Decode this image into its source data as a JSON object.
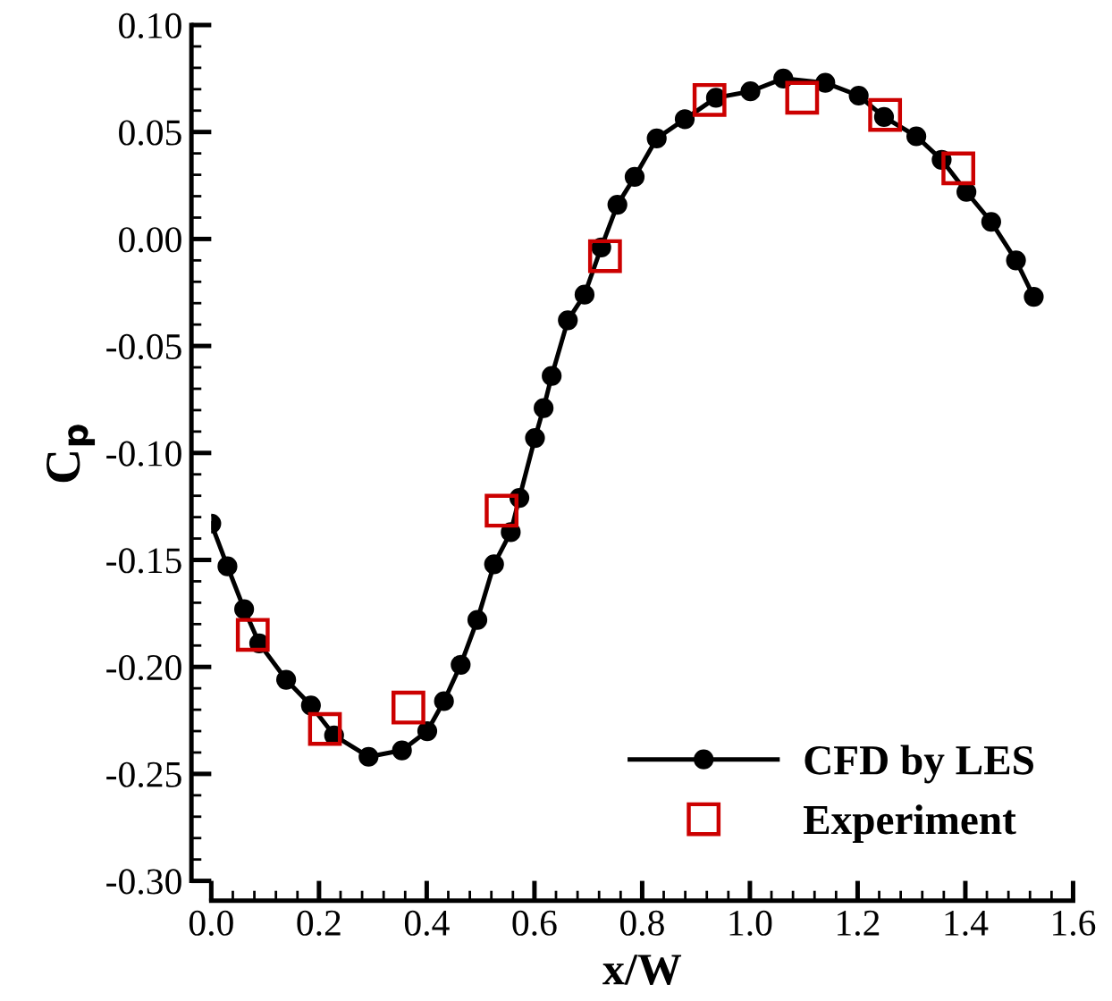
{
  "chart_data": {
    "type": "line",
    "xlabel": "x/W",
    "ylabel": "C$_{p}$",
    "xlim": [
      0,
      1.6
    ],
    "xticks": [
      {
        "value": 0,
        "label": "0.0"
      },
      0.2,
      0.4,
      0.6,
      0.8,
      {
        "value": 1,
        "label": "1.0"
      },
      1.2,
      1.4,
      1.6
    ],
    "ylim": [
      -0.3,
      0.1
    ],
    "yticks": [
      {
        "value": -0.3,
        "label": "-0.30"
      },
      {
        "value": -0.25,
        "label": "-0.25"
      },
      {
        "value": -0.2,
        "label": "-0.20"
      },
      {
        "value": -0.15,
        "label": "-0.15"
      },
      {
        "value": -0.1,
        "label": "-0.10"
      },
      {
        "value": -0.05,
        "label": "-0.05"
      },
      {
        "value": 0,
        "label": "0.00"
      },
      {
        "value": 0.05,
        "label": "0.05"
      },
      {
        "value": 0.1,
        "label": "0.10"
      }
    ],
    "grid": false,
    "legend": "bottom right",
    "series": [
      {
        "name": "CFD by LES",
        "type": "line",
        "color": "#000000",
        "marker": "circle",
        "line_style": "solid",
        "x": [
          0.0,
          0.03,
          0.061,
          0.089,
          0.139,
          0.185,
          0.228,
          0.292,
          0.354,
          0.401,
          0.432,
          0.463,
          0.494,
          0.525,
          0.556,
          0.572,
          0.601,
          0.617,
          0.632,
          0.662,
          0.693,
          0.724,
          0.754,
          0.786,
          0.827,
          0.879,
          0.937,
          1.001,
          1.062,
          1.14,
          1.202,
          1.249,
          1.309,
          1.356,
          1.402,
          1.448,
          1.494,
          1.527
        ],
        "values": [
          -0.133,
          -0.153,
          -0.173,
          -0.189,
          -0.206,
          -0.218,
          -0.232,
          -0.242,
          -0.239,
          -0.23,
          -0.216,
          -0.199,
          -0.178,
          -0.152,
          -0.137,
          -0.121,
          -0.093,
          -0.079,
          -0.064,
          -0.038,
          -0.026,
          -0.004,
          0.016,
          0.029,
          0.047,
          0.056,
          0.066,
          0.069,
          0.075,
          0.073,
          0.067,
          0.057,
          0.048,
          0.037,
          0.022,
          0.008,
          -0.01,
          -0.027
        ]
      },
      {
        "name": "Experiment",
        "type": "scatter",
        "color": "#cc0000",
        "marker": "square",
        "x": [
          0.077,
          0.211,
          0.366,
          0.539,
          0.731,
          0.925,
          1.097,
          1.251,
          1.387
        ],
        "values": [
          -0.185,
          -0.229,
          -0.219,
          -0.127,
          -0.008,
          0.065,
          0.066,
          0.058,
          0.033
        ]
      }
    ]
  }
}
